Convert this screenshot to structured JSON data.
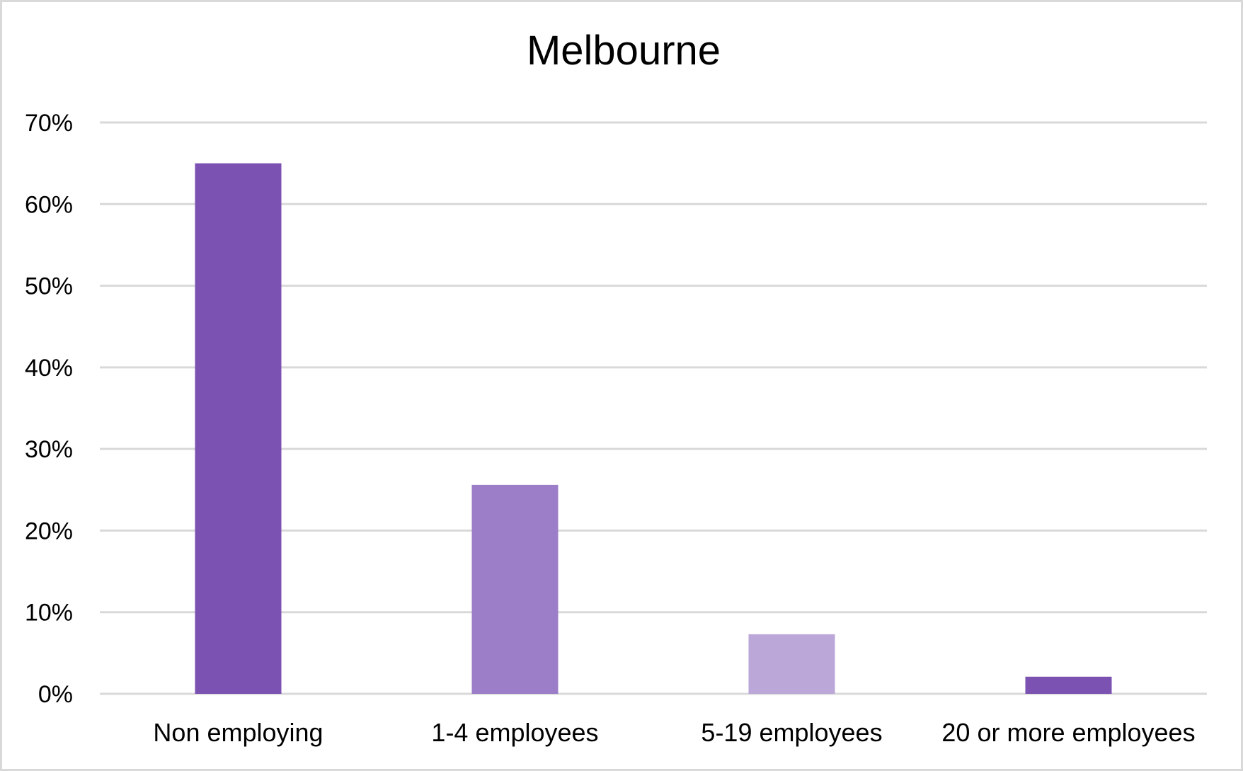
{
  "chart_data": {
    "type": "bar",
    "title": "Melbourne",
    "xlabel": "",
    "ylabel": "",
    "categories": [
      "Non employing",
      "1-4 employees",
      "5-19 employees",
      "20 or more employees"
    ],
    "values": [
      65,
      25.6,
      7.3,
      2.1
    ],
    "colors": [
      "#7b52b2",
      "#9b7ec7",
      "#bba7d8",
      "#7b52b2"
    ],
    "ylim": [
      0,
      70
    ],
    "yticks": [
      0,
      10,
      20,
      30,
      40,
      50,
      60,
      70
    ],
    "ytick_labels": [
      "0%",
      "10%",
      "20%",
      "30%",
      "40%",
      "50%",
      "60%",
      "70%"
    ],
    "grid": true,
    "legend": "none",
    "gridline_color": "#d9d9d9"
  }
}
